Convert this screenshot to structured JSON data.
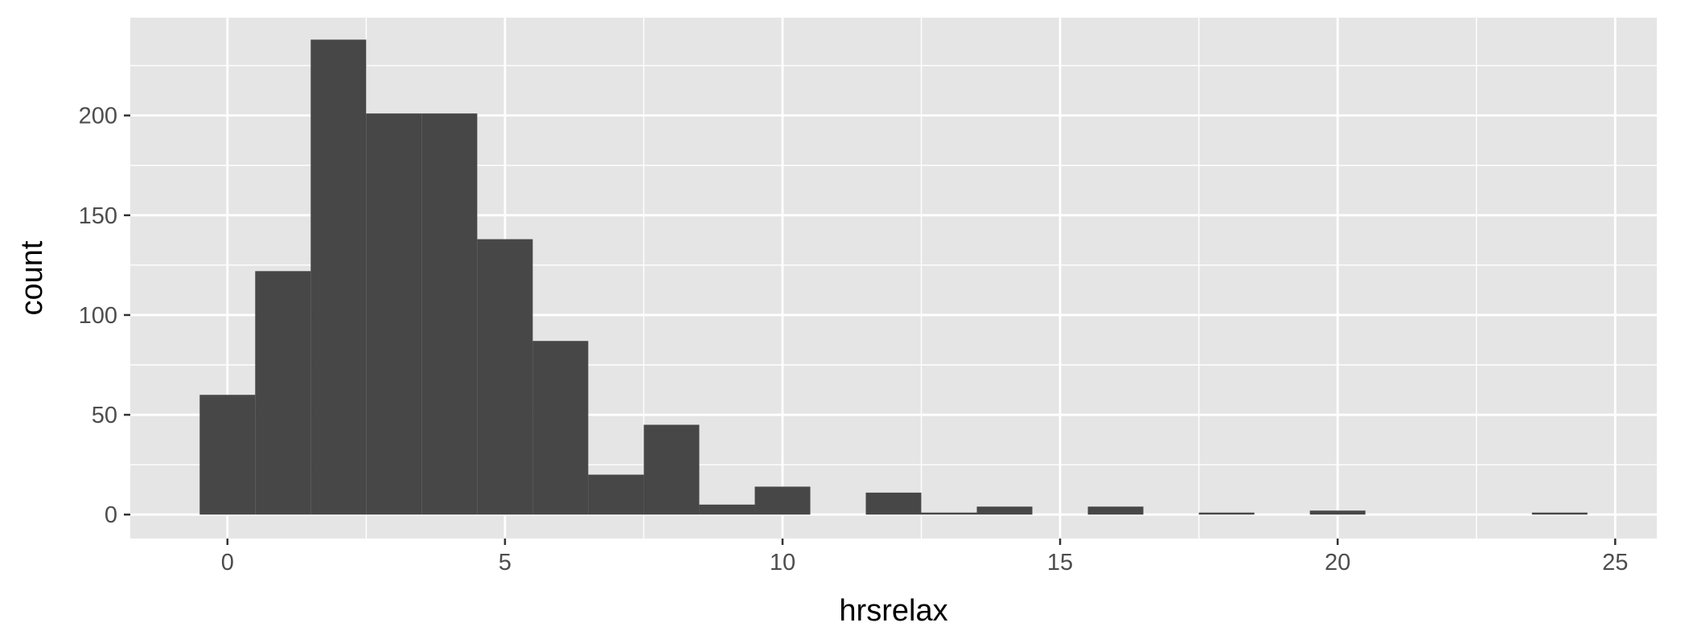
{
  "chart_data": {
    "type": "bar",
    "subtype": "histogram",
    "xlabel": "hrsrelax",
    "ylabel": "count",
    "bin_width": 1,
    "bins": [
      {
        "x": 0,
        "count": 60
      },
      {
        "x": 1,
        "count": 122
      },
      {
        "x": 2,
        "count": 238
      },
      {
        "x": 3,
        "count": 201
      },
      {
        "x": 4,
        "count": 201
      },
      {
        "x": 5,
        "count": 138
      },
      {
        "x": 6,
        "count": 87
      },
      {
        "x": 7,
        "count": 20
      },
      {
        "x": 8,
        "count": 45
      },
      {
        "x": 9,
        "count": 5
      },
      {
        "x": 10,
        "count": 14
      },
      {
        "x": 11,
        "count": 0
      },
      {
        "x": 12,
        "count": 11
      },
      {
        "x": 13,
        "count": 1
      },
      {
        "x": 14,
        "count": 4
      },
      {
        "x": 15,
        "count": 0
      },
      {
        "x": 16,
        "count": 4
      },
      {
        "x": 17,
        "count": 0
      },
      {
        "x": 18,
        "count": 1
      },
      {
        "x": 19,
        "count": 0
      },
      {
        "x": 20,
        "count": 2
      },
      {
        "x": 21,
        "count": 0
      },
      {
        "x": 22,
        "count": 0
      },
      {
        "x": 23,
        "count": 0
      },
      {
        "x": 24,
        "count": 1
      }
    ],
    "xlim": [
      -1.75,
      25.75
    ],
    "ylim": [
      -12,
      249
    ],
    "x_ticks": [
      0,
      5,
      10,
      15,
      20,
      25
    ],
    "y_ticks": [
      0,
      50,
      100,
      150,
      200
    ],
    "grid": true,
    "legend": "none",
    "colors": {
      "panel_background": "#e5e5e5",
      "grid": "#ffffff",
      "bar_fill": "#474747",
      "tick_text": "#4d4d4d",
      "axis_title": "#000000"
    }
  }
}
